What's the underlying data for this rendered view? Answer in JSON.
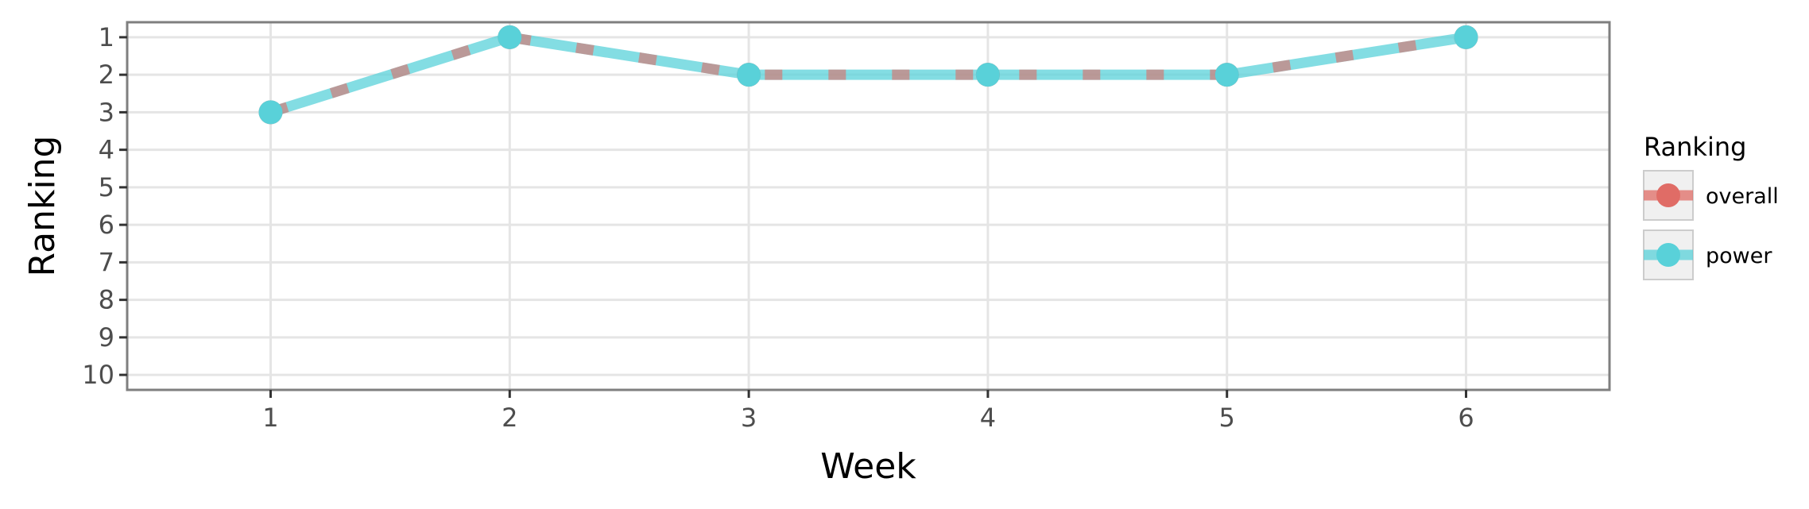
{
  "chart_data": {
    "type": "line",
    "xlabel": "Week",
    "ylabel": "Ranking",
    "x": [
      1,
      2,
      3,
      4,
      5,
      6
    ],
    "x_ticks": [
      "1",
      "2",
      "3",
      "4",
      "5",
      "6"
    ],
    "xlim": [
      0.4,
      6.6
    ],
    "y_ticks": [
      "1",
      "2",
      "3",
      "4",
      "5",
      "6",
      "7",
      "8",
      "9",
      "10"
    ],
    "ylim": [
      10.4,
      0.6
    ],
    "y_reversed": true,
    "grid": true,
    "legend": {
      "title": "Ranking",
      "placement": "right",
      "entries": [
        "overall",
        "power"
      ]
    },
    "series": [
      {
        "name": "overall",
        "values": [
          3,
          1,
          2,
          2,
          2,
          1
        ],
        "color": "#e06c66",
        "style": "dashed"
      },
      {
        "name": "power",
        "values": [
          3,
          1,
          2,
          2,
          2,
          1
        ],
        "color": "#59d1d9",
        "style": "solid"
      }
    ]
  }
}
